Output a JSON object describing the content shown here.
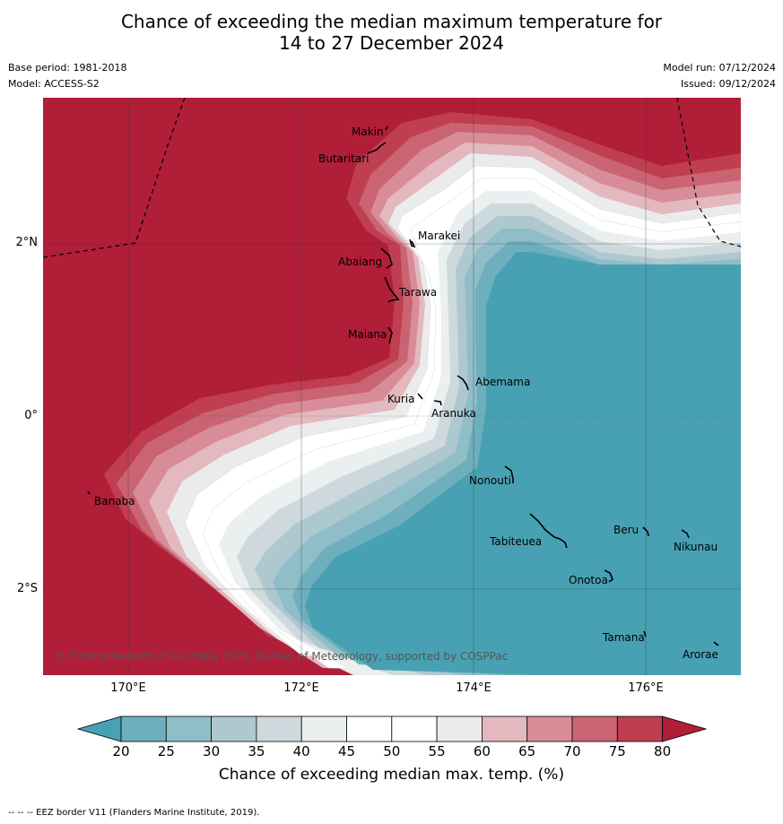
{
  "title_line1": "Chance of exceeding the median maximum temperature for",
  "title_line2": "14 to 27 December 2024",
  "base_period": "Base period: 1981-2018",
  "model": "Model: ACCESS-S2",
  "model_run": "Model run: 07/12/2024",
  "issued": "Issued: 09/12/2024",
  "lat_labels": [
    "2°N",
    "0°",
    "2°S"
  ],
  "lon_labels": [
    "170°E",
    "172°E",
    "174°E",
    "176°E"
  ],
  "islands": [
    "Makin",
    "Butaritari",
    "Marakei",
    "Abaiang",
    "Tarawa",
    "Maiana",
    "Abemama",
    "Kuria",
    "Aranuka",
    "Nonouti",
    "Tabiteuea",
    "Beru",
    "Nikunau",
    "Onotoa",
    "Tamana",
    "Arorae",
    "Banaba"
  ],
  "copyright": "© Commonwealth of Australia 2024, Bureau of Meteorology, supported by COSPPac",
  "colorbar": {
    "ticks": [
      "20",
      "25",
      "30",
      "35",
      "40",
      "45",
      "50",
      "55",
      "60",
      "65",
      "70",
      "75",
      "80"
    ],
    "colors": [
      "#48a1b3",
      "#6dafbd",
      "#8fbdc8",
      "#aec8cf",
      "#cdd9dd",
      "#eaeff0",
      "#ffffff",
      "#ffffff",
      "#ecebeb",
      "#e3b8bf",
      "#d88c97",
      "#ca6472",
      "#bf3f51",
      "#b11e38"
    ],
    "title": "Chance of exceeding median max. temp. (%)"
  },
  "footer": "--  --  -- EEZ border V11 (Flanders Marine Institute, 2019)."
}
